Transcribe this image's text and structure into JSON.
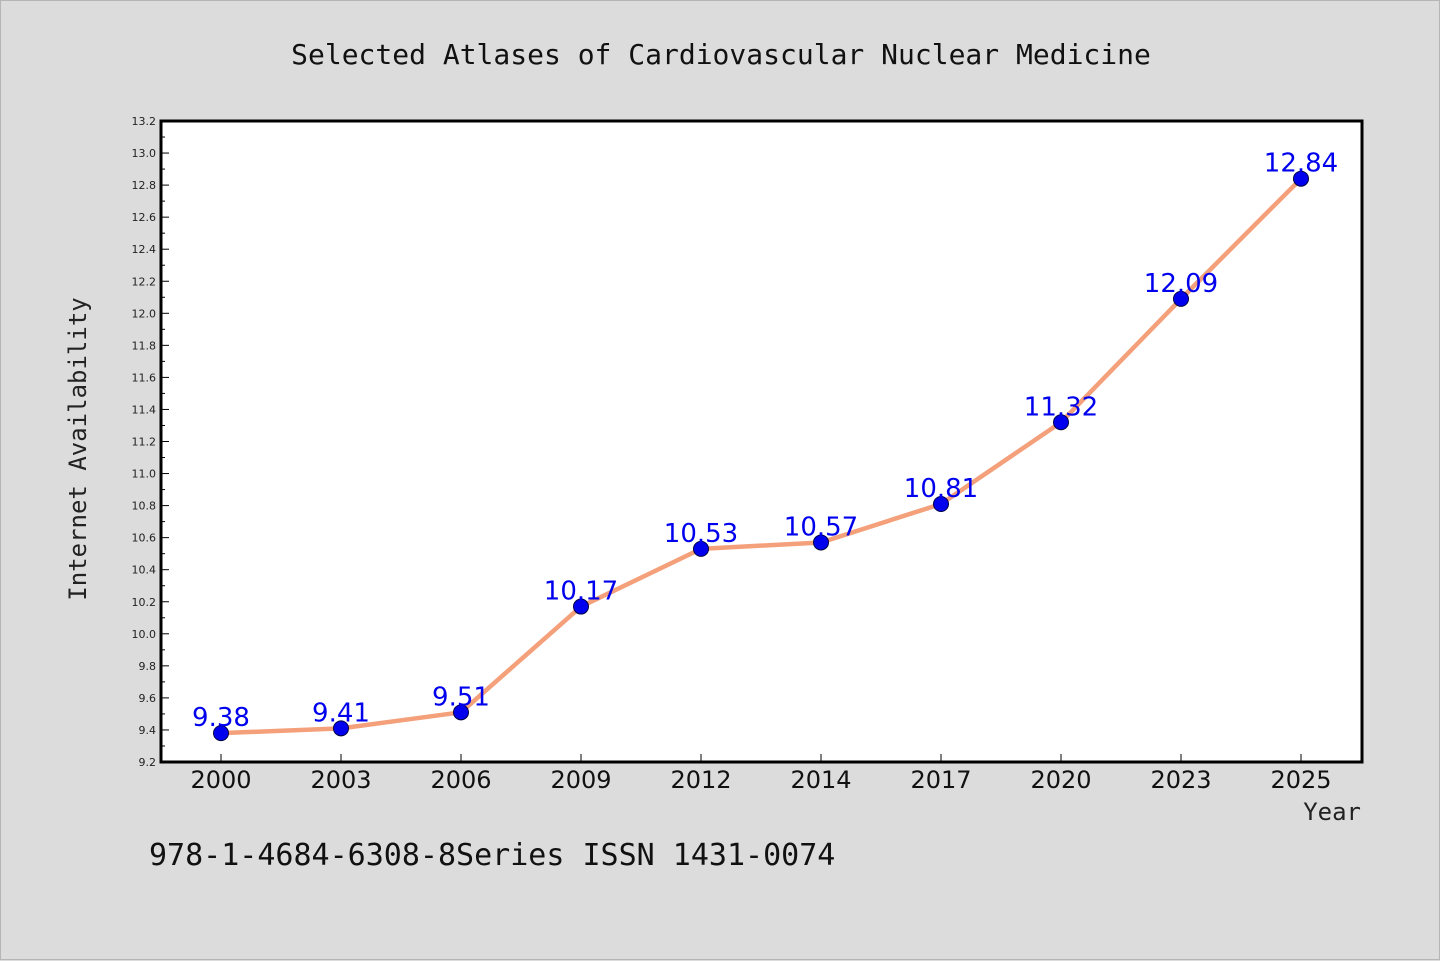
{
  "chart_data": {
    "type": "line",
    "title": "Selected Atlases of Cardiovascular Nuclear Medicine",
    "xlabel": "Year",
    "ylabel": "Internet Availability",
    "categories": [
      "2000",
      "2003",
      "2006",
      "2009",
      "2012",
      "2014",
      "2017",
      "2020",
      "2023",
      "2025"
    ],
    "series": [
      {
        "values": [
          9.38,
          9.41,
          9.51,
          10.17,
          10.53,
          10.57,
          10.81,
          11.32,
          12.09,
          12.84
        ],
        "labels": [
          "9.38",
          "9.41",
          "9.51",
          "10.17",
          "10.53",
          "10.57",
          "10.81",
          "11.32",
          "12.09",
          "12.84"
        ],
        "line_color": "#f4a07a",
        "marker_color": "#0000ee",
        "label_color": "#0000ee"
      }
    ],
    "ylim": [
      9.2,
      13.2
    ],
    "yticks": [
      "9.2",
      "9.4",
      "9.6",
      "9.8",
      "10.0",
      "10.2",
      "10.4",
      "10.6",
      "10.8",
      "11.0",
      "11.2",
      "11.4",
      "11.6",
      "11.8",
      "12.0",
      "12.2",
      "12.4",
      "12.6",
      "12.8",
      "13.0",
      "13.2"
    ],
    "grid": false,
    "legend": "none"
  },
  "footnote": "978-1-4684-6308-8Series ISSN 1431-0074",
  "colors": {
    "background": "#dcdcdc",
    "plot_background": "#ffffff",
    "axes": "#000000"
  }
}
